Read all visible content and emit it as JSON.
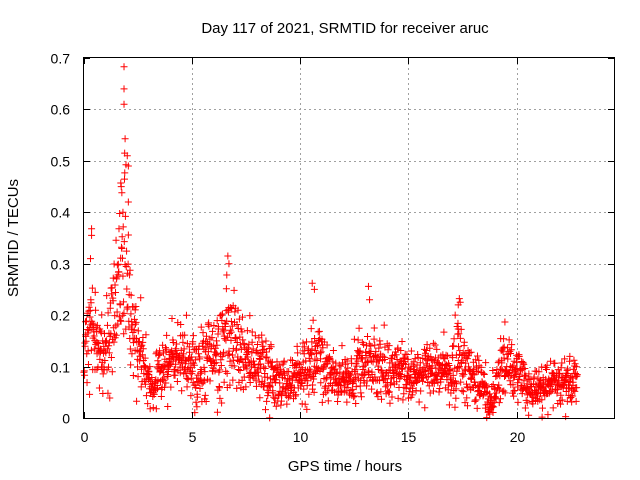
{
  "chart_data": {
    "type": "scatter",
    "title": "Day 117 of 2021, SRMTID for receiver aruc",
    "xlabel": "GPS time / hours",
    "ylabel": "SRMTID / TECUs",
    "xlim": [
      0,
      24.5
    ],
    "ylim": [
      0,
      0.7
    ],
    "grid": true,
    "marker": "+",
    "marker_color": "#ff0000",
    "x_ticks": [
      {
        "value": 0,
        "label": "0"
      },
      {
        "value": 5,
        "label": "5"
      },
      {
        "value": 10,
        "label": "10"
      },
      {
        "value": 15,
        "label": "15"
      },
      {
        "value": 20,
        "label": "20"
      }
    ],
    "y_ticks": [
      {
        "value": 0,
        "label": "0"
      },
      {
        "value": 0.1,
        "label": "0.1"
      },
      {
        "value": 0.2,
        "label": "0.2"
      },
      {
        "value": 0.3,
        "label": "0.3"
      },
      {
        "value": 0.4,
        "label": "0.4"
      },
      {
        "value": 0.5,
        "label": "0.5"
      },
      {
        "value": 0.6,
        "label": "0.6"
      },
      {
        "value": 0.7,
        "label": "0.7"
      }
    ],
    "series": [
      {
        "name": "SRMTID",
        "data_range_hours": [
          0,
          22.8
        ],
        "profile_hours": [
          0,
          0.3,
          0.6,
          0.9,
          1.2,
          1.5,
          1.7,
          1.8,
          1.9,
          2.0,
          2.2,
          2.5,
          2.8,
          3.0,
          3.2,
          3.5,
          4.0,
          4.5,
          5.0,
          5.5,
          6.0,
          6.5,
          6.7,
          7.0,
          7.3,
          7.6,
          8.0,
          8.5,
          9.0,
          9.5,
          10.0,
          10.5,
          10.7,
          11.0,
          11.5,
          12.0,
          12.5,
          13.0,
          13.3,
          13.6,
          14.0,
          14.5,
          15.0,
          15.5,
          16.0,
          16.5,
          17.0,
          17.3,
          17.6,
          18.0,
          18.5,
          18.8,
          19.0,
          19.5,
          20.0,
          20.5,
          21.0,
          21.5,
          22.0,
          22.5,
          22.8
        ],
        "profile_values": [
          0.14,
          0.16,
          0.15,
          0.13,
          0.17,
          0.22,
          0.3,
          0.38,
          0.33,
          0.27,
          0.17,
          0.13,
          0.1,
          0.07,
          0.06,
          0.09,
          0.1,
          0.11,
          0.11,
          0.11,
          0.12,
          0.15,
          0.19,
          0.16,
          0.13,
          0.11,
          0.1,
          0.09,
          0.07,
          0.07,
          0.09,
          0.11,
          0.12,
          0.1,
          0.08,
          0.08,
          0.09,
          0.1,
          0.13,
          0.1,
          0.09,
          0.09,
          0.08,
          0.09,
          0.09,
          0.09,
          0.09,
          0.12,
          0.1,
          0.08,
          0.06,
          0.03,
          0.06,
          0.11,
          0.09,
          0.06,
          0.05,
          0.06,
          0.07,
          0.07,
          0.08
        ],
        "peaks": [
          {
            "x": 1.85,
            "y": 0.683
          },
          {
            "x": 1.85,
            "y": 0.64
          },
          {
            "x": 1.85,
            "y": 0.61
          },
          {
            "x": 1.9,
            "y": 0.543
          },
          {
            "x": 1.88,
            "y": 0.515
          },
          {
            "x": 2.0,
            "y": 0.51
          },
          {
            "x": 2.05,
            "y": 0.49
          },
          {
            "x": 1.7,
            "y": 0.457
          },
          {
            "x": 1.75,
            "y": 0.438
          },
          {
            "x": 2.05,
            "y": 0.42
          },
          {
            "x": 1.8,
            "y": 0.4
          },
          {
            "x": 0.35,
            "y": 0.368
          },
          {
            "x": 0.35,
            "y": 0.355
          },
          {
            "x": 0.3,
            "y": 0.31
          },
          {
            "x": 6.65,
            "y": 0.315
          },
          {
            "x": 6.7,
            "y": 0.3
          },
          {
            "x": 6.6,
            "y": 0.278
          },
          {
            "x": 10.55,
            "y": 0.262
          },
          {
            "x": 10.65,
            "y": 0.25
          },
          {
            "x": 13.15,
            "y": 0.256
          },
          {
            "x": 13.2,
            "y": 0.23
          },
          {
            "x": 17.35,
            "y": 0.232
          },
          {
            "x": 17.3,
            "y": 0.22
          },
          {
            "x": 17.3,
            "y": 0.173
          }
        ]
      }
    ]
  }
}
